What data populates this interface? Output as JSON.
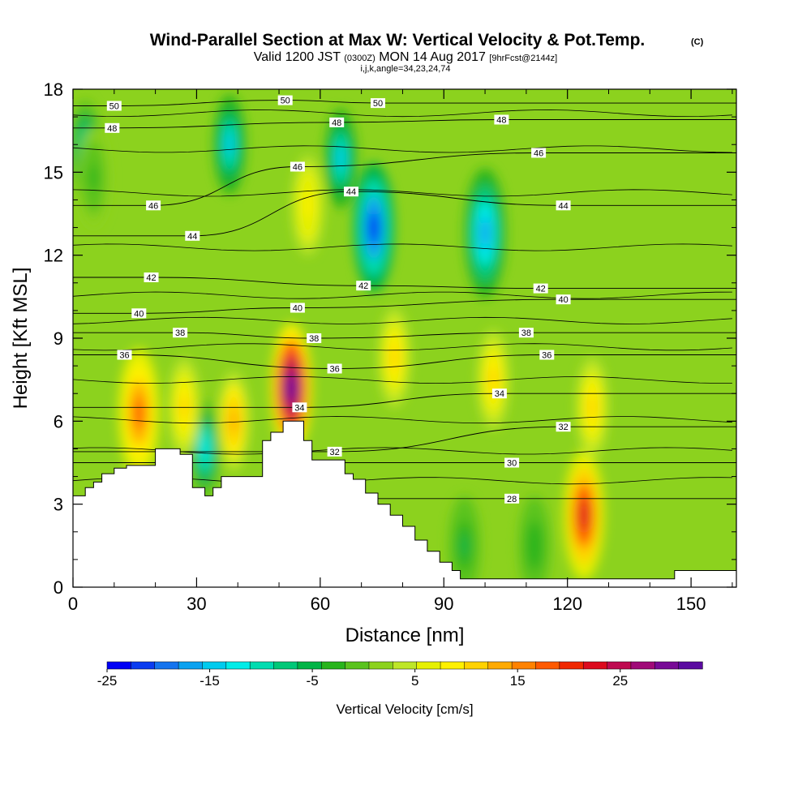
{
  "title": {
    "main": "Wind-Parallel Section at Max W: Vertical Velocity & Pot.Temp.",
    "copyright": "(C)",
    "valid_prefix": "Valid 1200 JST",
    "valid_utc": "(0300Z)",
    "valid_date": "MON 14 Aug 2017",
    "forecast": "[9hrFcst@2144z]",
    "indices": "i,j,k,angle=34,23,24,74"
  },
  "chart_data": {
    "type": "heatmap",
    "xlabel": "Distance [nm]",
    "ylabel": "Height [Kft MSL]",
    "xlim": [
      0,
      161
    ],
    "ylim": [
      0,
      18
    ],
    "x_ticks": [
      "0",
      "30",
      "60",
      "90",
      "120",
      "150"
    ],
    "y_ticks": [
      "0",
      "3",
      "6",
      "9",
      "12",
      "15",
      "18"
    ],
    "colorbar": {
      "label": "Vertical Velocity [cm/s]",
      "range": [
        -25,
        33
      ],
      "tick_labels": [
        "-25",
        "-15",
        "-5",
        "5",
        "15",
        "25"
      ],
      "tick_values": [
        -25,
        -15,
        -5,
        5,
        15,
        25
      ],
      "colors": [
        "#0000f5",
        "#0a3cf0",
        "#1474ee",
        "#0aa2f0",
        "#00cbee",
        "#00ece8",
        "#00dcb0",
        "#00c878",
        "#00b446",
        "#28b41c",
        "#5ac31e",
        "#8cd21e",
        "#bee628",
        "#e6f000",
        "#fff000",
        "#ffd200",
        "#ffaa00",
        "#ff8200",
        "#ff5a00",
        "#f02800",
        "#dc0a1e",
        "#be0a50",
        "#a00a78",
        "#780a96",
        "#5a0aa0"
      ]
    },
    "vertical_velocity_features": [
      {
        "x": 73,
        "y": 13,
        "value": -24
      },
      {
        "x": 100,
        "y": 12.8,
        "value": -18
      },
      {
        "x": 38,
        "y": 16,
        "value": -14
      },
      {
        "x": 65,
        "y": 15.5,
        "value": -14
      },
      {
        "x": 3,
        "y": 15.8,
        "value": -12
      },
      {
        "x": 32,
        "y": 5,
        "value": -13
      },
      {
        "x": 53,
        "y": 7.2,
        "value": 32
      },
      {
        "x": 124,
        "y": 2.6,
        "value": 22
      },
      {
        "x": 16,
        "y": 6.3,
        "value": 17
      },
      {
        "x": 27,
        "y": 6.5,
        "value": 12
      },
      {
        "x": 39,
        "y": 6,
        "value": 13
      },
      {
        "x": 78,
        "y": 8.3,
        "value": 11
      },
      {
        "x": 102,
        "y": 7.5,
        "value": 10
      },
      {
        "x": 126,
        "y": 6.5,
        "value": 11
      },
      {
        "x": 5,
        "y": 14.8,
        "value": -3
      },
      {
        "x": 57,
        "y": 13.8,
        "value": 9
      },
      {
        "x": 95,
        "y": 1.5,
        "value": -5
      },
      {
        "x": 112,
        "y": 1.5,
        "value": -4
      }
    ],
    "potential_temperature_contours": {
      "interval": 1,
      "labeled_levels": [
        {
          "value": 50,
          "label": "50",
          "x": 10,
          "y": 17.4
        },
        {
          "value": 50,
          "label": "50",
          "x": 51.5,
          "y": 17.6
        },
        {
          "value": 50,
          "label": "50",
          "x": 74,
          "y": 17.5
        },
        {
          "value": 48,
          "label": "48",
          "x": 9.5,
          "y": 16.6
        },
        {
          "value": 48,
          "label": "48",
          "x": 64,
          "y": 16.8
        },
        {
          "value": 48,
          "label": "48",
          "x": 104,
          "y": 16.9
        },
        {
          "value": 46,
          "label": "46",
          "x": 19.5,
          "y": 13.8
        },
        {
          "value": 46,
          "label": "46",
          "x": 54.5,
          "y": 15.2
        },
        {
          "value": 46,
          "label": "46",
          "x": 113,
          "y": 15.7
        },
        {
          "value": 44,
          "label": "44",
          "x": 29,
          "y": 12.7
        },
        {
          "value": 44,
          "label": "44",
          "x": 67.5,
          "y": 14.3
        },
        {
          "value": 44,
          "label": "44",
          "x": 119,
          "y": 13.8
        },
        {
          "value": 42,
          "label": "42",
          "x": 19,
          "y": 11.2
        },
        {
          "value": 42,
          "label": "42",
          "x": 70.5,
          "y": 10.9
        },
        {
          "value": 42,
          "label": "42",
          "x": 113.5,
          "y": 10.8
        },
        {
          "value": 40,
          "label": "40",
          "x": 16,
          "y": 9.9
        },
        {
          "value": 40,
          "label": "40",
          "x": 54.5,
          "y": 10.1
        },
        {
          "value": 40,
          "label": "40",
          "x": 119,
          "y": 10.4
        },
        {
          "value": 38,
          "label": "38",
          "x": 26,
          "y": 9.2
        },
        {
          "value": 38,
          "label": "38",
          "x": 58.5,
          "y": 9
        },
        {
          "value": 38,
          "label": "38",
          "x": 110,
          "y": 9.2
        },
        {
          "value": 36,
          "label": "36",
          "x": 12.5,
          "y": 8.4
        },
        {
          "value": 36,
          "label": "36",
          "x": 63.5,
          "y": 7.9
        },
        {
          "value": 36,
          "label": "36",
          "x": 115,
          "y": 8.4
        },
        {
          "value": 34,
          "label": "34",
          "x": 55,
          "y": 6.5
        },
        {
          "value": 34,
          "label": "34",
          "x": 103.5,
          "y": 7
        },
        {
          "value": 32,
          "label": "32",
          "x": 63.5,
          "y": 4.9
        },
        {
          "value": 32,
          "label": "32",
          "x": 119,
          "y": 5.8
        },
        {
          "value": 30,
          "label": "30",
          "x": 106.5,
          "y": 4.5
        },
        {
          "value": 28,
          "label": "28",
          "x": 106.5,
          "y": 3.2
        }
      ]
    },
    "terrain_profile": {
      "x": [
        0,
        3,
        5,
        7,
        10,
        13,
        20,
        26,
        29,
        32,
        34,
        36,
        42,
        46,
        48,
        51,
        56,
        58,
        63,
        66,
        68,
        71,
        74,
        77,
        80,
        83,
        86,
        89,
        92,
        94,
        140,
        146,
        161
      ],
      "y": [
        3.3,
        3.6,
        3.8,
        4.1,
        4.3,
        4.4,
        5,
        4.8,
        3.6,
        3.3,
        3.6,
        4,
        4,
        5.3,
        5.6,
        6,
        5.3,
        4.6,
        4.6,
        4.1,
        3.9,
        3.4,
        3,
        2.6,
        2.2,
        1.7,
        1.3,
        0.9,
        0.6,
        0.3,
        0.3,
        0.6,
        0.3
      ]
    }
  }
}
